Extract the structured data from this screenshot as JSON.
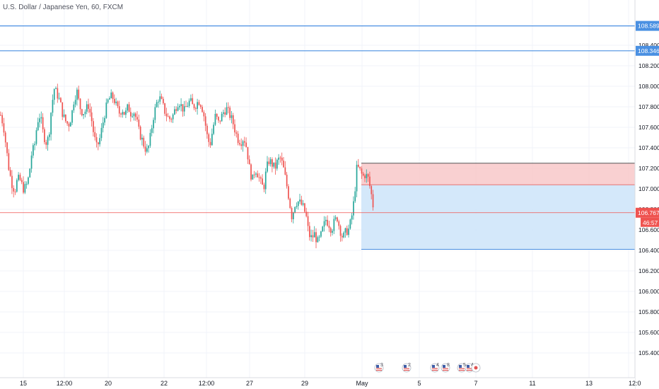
{
  "chart_data": {
    "type": "candlestick",
    "title": "U.S. Dollar / Japanese Yen, 60, FXCM",
    "y_axis": {
      "range": [
        105.35,
        108.7
      ],
      "ticks": [
        105.4,
        105.6,
        105.8,
        106.0,
        106.2,
        106.4,
        106.6,
        106.8,
        107.0,
        107.2,
        107.4,
        107.6,
        107.8,
        108.0,
        108.2,
        108.4
      ],
      "tick_labels": [
        "105.400",
        "105.600",
        "105.800",
        "106.000",
        "106.200",
        "106.400",
        "106.600",
        "106.800",
        "107.000",
        "107.200",
        "107.400",
        "107.600",
        "107.800",
        "108.000",
        "108.200",
        "108.400"
      ]
    },
    "x_axis": {
      "tick_labels": [
        "15",
        "12:00",
        "20",
        "22",
        "12:00",
        "27",
        "29",
        "May",
        "5",
        "7",
        "11",
        "13",
        "12:0"
      ]
    },
    "horizontal_lines": [
      {
        "value": 108.589,
        "label": "108.589",
        "color": "#4a90e2"
      },
      {
        "value": 108.346,
        "label": "108.346",
        "color": "#4a90e2"
      }
    ],
    "last_price": {
      "value": 106.767,
      "label": "106.767",
      "countdown": "46:57",
      "color": "#ef5350"
    },
    "position": {
      "type": "short",
      "entry": 107.04,
      "stop": 107.25,
      "target": 106.41,
      "risk_color": "#f7c4c6",
      "reward_color": "#cfe5f9"
    },
    "candle_colors": {
      "up": "#26a69a",
      "down": "#ef5350"
    },
    "price_path": [
      [
        0,
        107.72
      ],
      [
        4,
        107.62
      ],
      [
        8,
        107.4
      ],
      [
        12,
        107.18
      ],
      [
        16,
        107.05
      ],
      [
        20,
        106.98
      ],
      [
        24,
        107.1
      ],
      [
        28,
        107.08
      ],
      [
        32,
        107.0
      ],
      [
        36,
        107.02
      ],
      [
        40,
        107.12
      ],
      [
        44,
        107.35
      ],
      [
        48,
        107.42
      ],
      [
        52,
        107.66
      ],
      [
        56,
        107.72
      ],
      [
        60,
        107.55
      ],
      [
        64,
        107.45
      ],
      [
        68,
        107.5
      ],
      [
        72,
        107.8
      ],
      [
        76,
        107.98
      ],
      [
        80,
        107.92
      ],
      [
        84,
        107.85
      ],
      [
        88,
        107.72
      ],
      [
        92,
        107.66
      ],
      [
        96,
        107.62
      ],
      [
        100,
        107.7
      ],
      [
        104,
        107.88
      ],
      [
        108,
        107.95
      ],
      [
        112,
        107.8
      ],
      [
        116,
        107.74
      ],
      [
        120,
        107.76
      ],
      [
        124,
        107.82
      ],
      [
        128,
        107.7
      ],
      [
        132,
        107.52
      ],
      [
        136,
        107.4
      ],
      [
        140,
        107.48
      ],
      [
        144,
        107.62
      ],
      [
        148,
        107.76
      ],
      [
        152,
        107.86
      ],
      [
        156,
        107.9
      ],
      [
        160,
        107.88
      ],
      [
        164,
        107.8
      ],
      [
        168,
        107.74
      ],
      [
        172,
        107.78
      ],
      [
        176,
        107.72
      ],
      [
        180,
        107.8
      ],
      [
        184,
        107.74
      ],
      [
        188,
        107.76
      ],
      [
        192,
        107.68
      ],
      [
        196,
        107.55
      ],
      [
        200,
        107.48
      ],
      [
        204,
        107.4
      ],
      [
        208,
        107.36
      ],
      [
        212,
        107.52
      ],
      [
        216,
        107.7
      ],
      [
        220,
        107.82
      ],
      [
        224,
        107.9
      ],
      [
        228,
        107.84
      ],
      [
        232,
        107.76
      ],
      [
        236,
        107.7
      ],
      [
        240,
        107.68
      ],
      [
        244,
        107.72
      ],
      [
        248,
        107.8
      ],
      [
        252,
        107.86
      ],
      [
        256,
        107.8
      ],
      [
        260,
        107.76
      ],
      [
        264,
        107.82
      ],
      [
        268,
        107.86
      ],
      [
        272,
        107.8
      ],
      [
        276,
        107.82
      ],
      [
        280,
        107.86
      ],
      [
        284,
        107.82
      ],
      [
        288,
        107.7
      ],
      [
        292,
        107.52
      ],
      [
        296,
        107.42
      ],
      [
        300,
        107.58
      ],
      [
        304,
        107.72
      ],
      [
        308,
        107.64
      ],
      [
        312,
        107.7
      ],
      [
        316,
        107.76
      ],
      [
        320,
        107.78
      ],
      [
        324,
        107.72
      ],
      [
        328,
        107.66
      ],
      [
        332,
        107.56
      ],
      [
        336,
        107.48
      ],
      [
        340,
        107.46
      ],
      [
        344,
        107.5
      ],
      [
        348,
        107.4
      ],
      [
        352,
        107.2
      ],
      [
        356,
        107.08
      ],
      [
        360,
        107.2
      ],
      [
        364,
        107.14
      ],
      [
        368,
        107.06
      ],
      [
        372,
        107.0
      ],
      [
        376,
        107.2
      ],
      [
        380,
        107.28
      ],
      [
        384,
        107.24
      ],
      [
        388,
        107.2
      ],
      [
        392,
        107.28
      ],
      [
        396,
        107.3
      ],
      [
        400,
        107.2
      ],
      [
        404,
        107.06
      ],
      [
        408,
        106.9
      ],
      [
        412,
        106.72
      ],
      [
        416,
        106.85
      ],
      [
        420,
        106.88
      ],
      [
        424,
        106.86
      ],
      [
        428,
        106.82
      ],
      [
        432,
        106.74
      ],
      [
        436,
        106.55
      ],
      [
        440,
        106.52
      ],
      [
        444,
        106.56
      ],
      [
        448,
        106.48
      ],
      [
        452,
        106.52
      ],
      [
        456,
        106.62
      ],
      [
        460,
        106.7
      ],
      [
        464,
        106.66
      ],
      [
        468,
        106.6
      ],
      [
        472,
        106.68
      ],
      [
        476,
        106.72
      ],
      [
        480,
        106.6
      ],
      [
        484,
        106.52
      ],
      [
        488,
        106.58
      ],
      [
        492,
        106.6
      ],
      [
        496,
        106.7
      ],
      [
        500,
        106.9
      ],
      [
        504,
        107.22
      ],
      [
        508,
        107.18
      ],
      [
        512,
        107.12
      ],
      [
        516,
        107.14
      ],
      [
        520,
        107.1
      ],
      [
        524,
        106.96
      ],
      [
        528,
        106.78
      ]
    ],
    "events": [
      {
        "count": "3"
      },
      {
        "count": "2"
      },
      {
        "count": "4"
      },
      {
        "count": "8"
      },
      {
        "count": "5"
      },
      {
        "count": "4"
      }
    ]
  }
}
